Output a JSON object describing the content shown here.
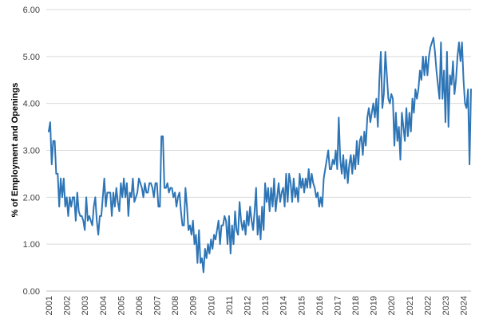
{
  "chart_data": {
    "type": "line",
    "title": "",
    "xlabel": "",
    "ylabel": "% of Employment and Openings",
    "ylim": [
      0,
      6
    ],
    "y_ticks": [
      "0.00",
      "1.00",
      "2.00",
      "3.00",
      "4.00",
      "5.00",
      "6.00"
    ],
    "x_ticks": [
      "2001",
      "2002",
      "2003",
      "2004",
      "2005",
      "2006",
      "2007",
      "2008",
      "2009",
      "2010",
      "2011",
      "2012",
      "2013",
      "2014",
      "2015",
      "2016",
      "2017",
      "2018",
      "2019",
      "2020",
      "2021",
      "2022",
      "2023",
      "2024"
    ],
    "x_start_year": 2001,
    "grid": "horizontal",
    "colors": {
      "series": "#2E75B6",
      "grid": "#D9D9D9",
      "axis": "#BFBFBF"
    },
    "series": [
      {
        "name": "",
        "frequency": "monthly",
        "start": "2001-01",
        "values": [
          3.4,
          3.6,
          2.7,
          3.2,
          3.2,
          2.5,
          2.5,
          1.8,
          2.4,
          2.0,
          2.4,
          1.8,
          2.0,
          1.6,
          2.0,
          1.8,
          2.0,
          2.0,
          1.5,
          2.1,
          1.7,
          1.6,
          1.6,
          1.5,
          1.3,
          2.0,
          1.5,
          1.6,
          1.5,
          1.4,
          1.8,
          2.0,
          1.5,
          1.2,
          1.6,
          1.6,
          2.0,
          2.4,
          1.8,
          2.1,
          2.1,
          2.1,
          1.6,
          2.1,
          1.8,
          2.2,
          1.9,
          1.7,
          2.3,
          2.0,
          2.4,
          2.0,
          2.3,
          1.6,
          2.1,
          2.0,
          2.4,
          1.9,
          2.0,
          2.1,
          2.4,
          2.3,
          2.2,
          2.0,
          2.3,
          2.1,
          2.1,
          2.3,
          2.3,
          2.2,
          2.0,
          2.3,
          2.3,
          1.8,
          1.8,
          3.3,
          3.3,
          2.2,
          2.2,
          2.3,
          2.1,
          2.2,
          2.2,
          2.0,
          2.1,
          1.8,
          2.0,
          2.1,
          1.7,
          1.4,
          1.4,
          2.2,
          1.8,
          1.3,
          1.4,
          1.2,
          1.5,
          1.0,
          1.2,
          0.6,
          1.3,
          0.6,
          0.7,
          0.4,
          0.9,
          0.7,
          1.0,
          0.8,
          1.1,
          0.9,
          1.2,
          1.1,
          1.3,
          1.5,
          1.0,
          1.4,
          1.4,
          1.6,
          1.5,
          1.0,
          1.6,
          0.8,
          1.4,
          1.0,
          1.7,
          1.3,
          1.2,
          1.9,
          1.5,
          1.3,
          1.5,
          1.2,
          1.7,
          1.4,
          1.8,
          1.5,
          1.3,
          1.7,
          2.2,
          1.2,
          1.6,
          1.1,
          1.8,
          1.3,
          2.3,
          1.9,
          2.2,
          1.7,
          2.2,
          1.8,
          2.4,
          1.7,
          2.0,
          2.3,
          1.9,
          2.1,
          2.2,
          1.8,
          2.5,
          1.9,
          2.5,
          2.3,
          1.9,
          2.4,
          2.0,
          2.2,
          1.9,
          2.5,
          2.2,
          2.4,
          2.1,
          2.4,
          2.2,
          2.6,
          2.2,
          2.5,
          2.3,
          2.2,
          2.0,
          2.1,
          1.8,
          2.0,
          1.8,
          2.4,
          2.6,
          2.8,
          3.0,
          2.6,
          2.6,
          2.8,
          2.7,
          3.0,
          2.6,
          3.7,
          2.8,
          2.5,
          2.9,
          2.4,
          2.8,
          2.3,
          2.7,
          2.9,
          2.5,
          2.9,
          2.6,
          3.2,
          2.7,
          3.2,
          3.3,
          2.9,
          3.4,
          3.1,
          3.7,
          3.9,
          3.6,
          3.8,
          4.0,
          3.7,
          4.1,
          3.5,
          4.5,
          5.1,
          3.9,
          4.2,
          5.1,
          4.6,
          4.1,
          4.0,
          4.2,
          4.1,
          3.1,
          3.8,
          3.2,
          3.5,
          2.8,
          3.8,
          3.5,
          3.2,
          3.9,
          3.3,
          3.8,
          3.4,
          4.1,
          3.8,
          4.3,
          4.1,
          4.3,
          4.7,
          4.5,
          5.0,
          4.6,
          5.0,
          4.6,
          5.0,
          5.2,
          5.3,
          5.4,
          5.1,
          4.7,
          4.4,
          4.1,
          5.3,
          4.1,
          4.7,
          3.6,
          5.1,
          3.5,
          4.6,
          4.4,
          4.9,
          4.2,
          4.5,
          5.0,
          5.3,
          4.9,
          5.3,
          4.5,
          4.0,
          3.9,
          4.3,
          2.7,
          4.3
        ]
      }
    ]
  }
}
